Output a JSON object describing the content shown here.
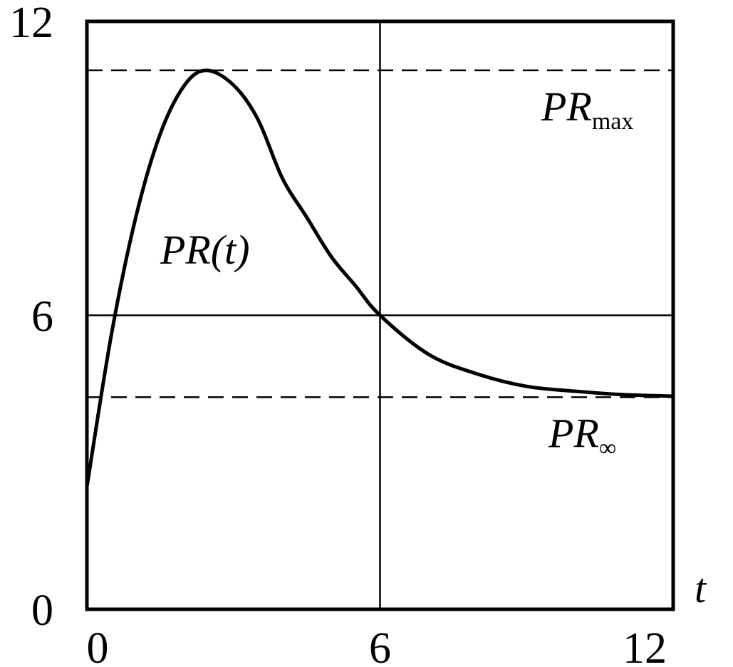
{
  "chart_data": {
    "type": "line",
    "x_label": "t",
    "x": [
      0,
      0.5,
      1,
      1.5,
      2,
      2.45,
      3,
      3.5,
      4,
      4.5,
      5,
      5.5,
      6,
      7,
      8,
      9,
      10,
      11,
      12
    ],
    "series": [
      {
        "name": "PR(t)",
        "color": "#000000",
        "values": [
          2.5,
          5.6,
          8.0,
          9.7,
          10.7,
          11.0,
          10.7,
          10.0,
          8.8,
          8.0,
          7.2,
          6.6,
          6.0,
          5.2,
          4.8,
          4.55,
          4.45,
          4.38,
          4.35
        ]
      }
    ],
    "reference_lines": [
      {
        "value": 11,
        "label": "PR",
        "label_sub": "max"
      },
      {
        "value": 4.33,
        "label": "PR",
        "label_sub": "∞"
      }
    ],
    "xlim": [
      0,
      12
    ],
    "ylim": [
      0,
      12
    ],
    "xticks": [
      0,
      6,
      12
    ],
    "yticks": [
      0,
      6,
      12
    ],
    "grid": true
  }
}
